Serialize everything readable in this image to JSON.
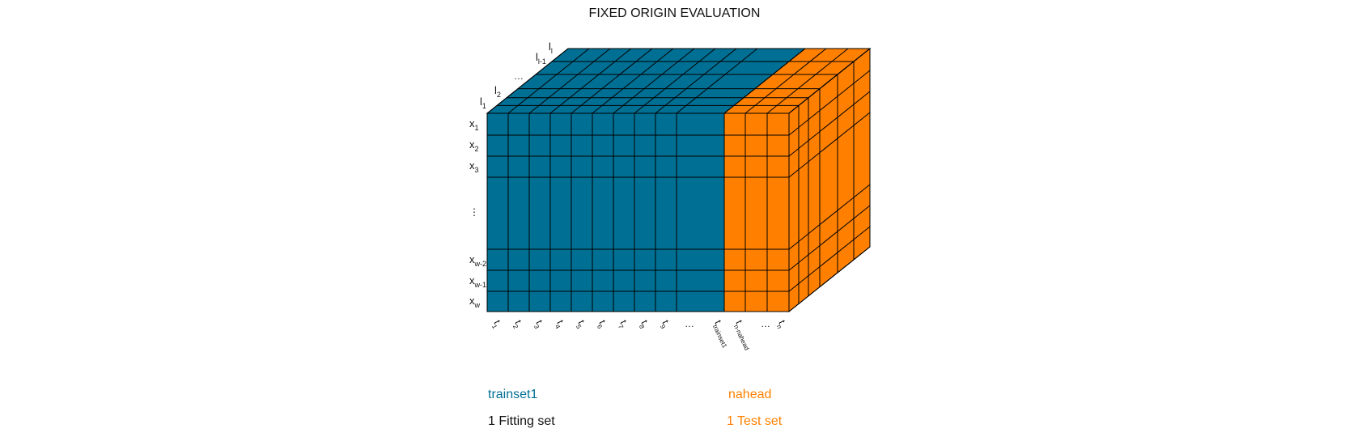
{
  "title": "FIXED ORIGIN EVALUATION",
  "colors": {
    "train": "#006F94",
    "test": "#FF8000",
    "train_top": "#006F94",
    "test_top": "#FF8000",
    "side": "#FF8000",
    "stroke": "#000000"
  },
  "row_labels": [
    {
      "base": "x",
      "sub": "1"
    },
    {
      "base": "x",
      "sub": "2"
    },
    {
      "base": "x",
      "sub": "3"
    },
    {
      "base": "⋮",
      "sub": ""
    },
    {
      "base": "x",
      "sub": "w-2"
    },
    {
      "base": "x",
      "sub": "w-1"
    },
    {
      "base": "x",
      "sub": "w"
    }
  ],
  "layer_labels": [
    {
      "base": "l",
      "sub": "1"
    },
    {
      "base": "l",
      "sub": "2"
    },
    {
      "base": "…",
      "sub": ""
    },
    {
      "base": "l",
      "sub": "l-1"
    },
    {
      "base": "l",
      "sub": "l"
    }
  ],
  "column_labels": [
    {
      "base": "t",
      "sub": "1"
    },
    {
      "base": "t",
      "sub": "2"
    },
    {
      "base": "t",
      "sub": "3"
    },
    {
      "base": "t",
      "sub": "4"
    },
    {
      "base": "t",
      "sub": "5"
    },
    {
      "base": "t",
      "sub": "6"
    },
    {
      "base": "t",
      "sub": "7"
    },
    {
      "base": "t",
      "sub": "8"
    },
    {
      "base": "t",
      "sub": "9"
    },
    {
      "base": "…",
      "sub": ""
    },
    {
      "base": "t",
      "sub": "trainset1"
    },
    {
      "base": "t",
      "sub": "n-nahead"
    },
    {
      "base": "…",
      "sub": ""
    },
    {
      "base": "t",
      "sub": "n"
    }
  ],
  "legend": {
    "train_name": "trainset1",
    "train_desc": "1 Fitting set",
    "test_name": "nahead",
    "test_desc": "1 Test set"
  }
}
